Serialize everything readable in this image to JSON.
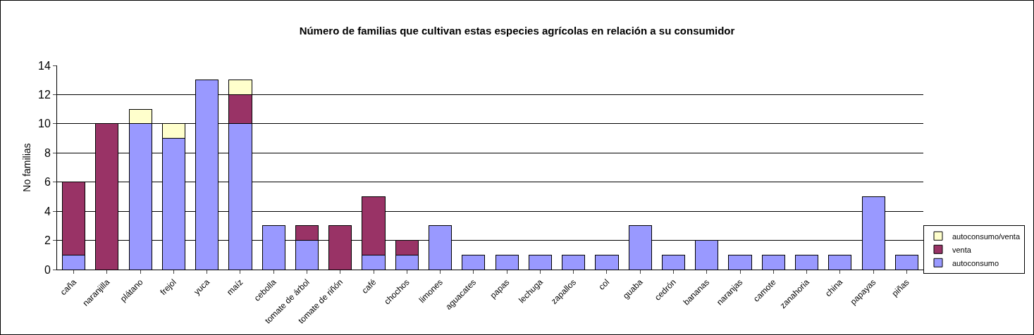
{
  "chart_data": {
    "type": "bar",
    "stacked": true,
    "title": "Número de familias que cultivan estas especies agrícolas en relación a su consumidor",
    "ylabel": "No familias",
    "categories": [
      "caña",
      "naranjilla",
      "plátano",
      "frejol",
      "yuca",
      "maíz",
      "cebolla",
      "tomate de árbol",
      "tomate de riñón",
      "café",
      "chochos",
      "limones",
      "aguacates",
      "papas",
      "lechuga",
      "zapallos",
      "col",
      "guaba",
      "cedrón",
      "bananas",
      "naranjas",
      "camote",
      "zanahoria",
      "china",
      "papayas",
      "piñas"
    ],
    "series": [
      {
        "name": "autoconsumo",
        "color": "#9999ff",
        "values": [
          1,
          null,
          10,
          9,
          13,
          10,
          3,
          2,
          null,
          1,
          1,
          3,
          1,
          1,
          1,
          1,
          1,
          3,
          1,
          2,
          1,
          1,
          1,
          1,
          5,
          1
        ]
      },
      {
        "name": "venta",
        "color": "#993366",
        "values": [
          5,
          10,
          null,
          null,
          null,
          2,
          null,
          1,
          3,
          4,
          1,
          null,
          null,
          null,
          null,
          null,
          null,
          null,
          null,
          null,
          null,
          null,
          null,
          null,
          null,
          null
        ]
      },
      {
        "name": "autoconsumo/venta",
        "color": "#ffffcc",
        "values": [
          null,
          null,
          1,
          1,
          null,
          1,
          null,
          null,
          null,
          null,
          null,
          null,
          null,
          null,
          null,
          null,
          null,
          null,
          null,
          null,
          null,
          null,
          null,
          null,
          null,
          null
        ]
      }
    ],
    "ylim": [
      0,
      14
    ],
    "yticks": [
      0,
      2,
      4,
      6,
      8,
      10,
      12,
      14
    ],
    "grid": "y",
    "legend": "bottom right"
  }
}
